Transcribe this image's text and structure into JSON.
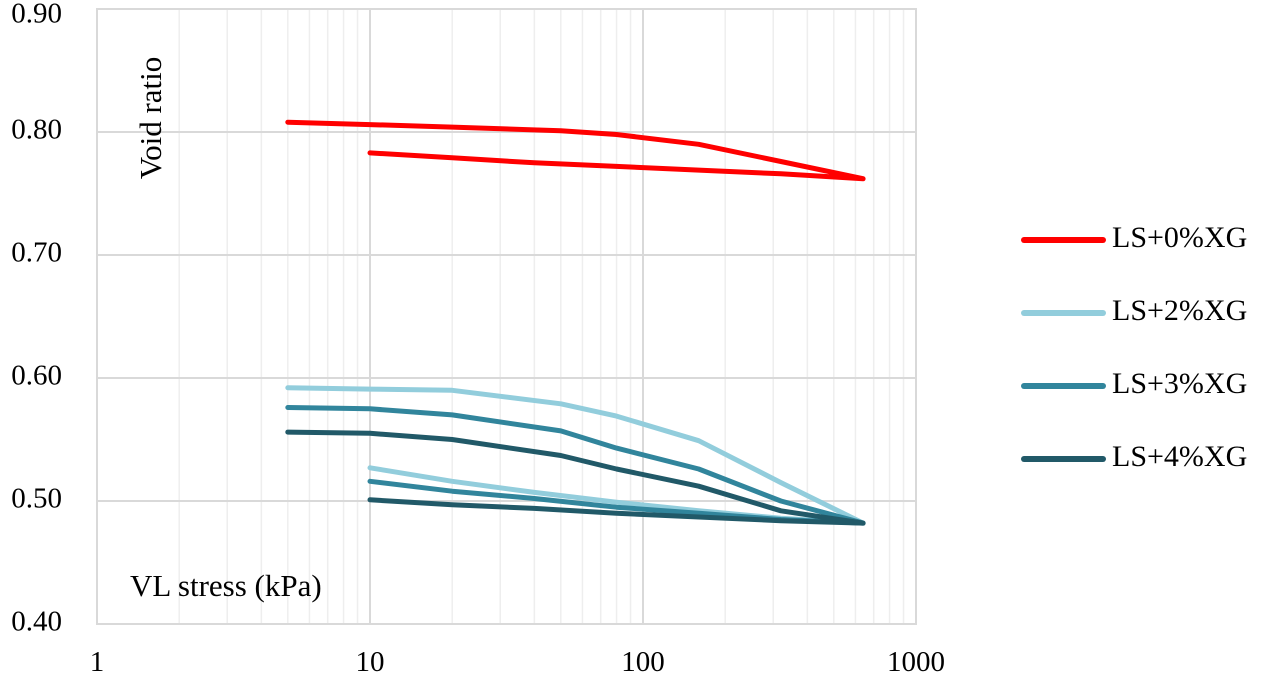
{
  "chart_data": {
    "type": "line",
    "title": "",
    "xlabel": "VL stress (kPa)",
    "ylabel": "Void ratio",
    "x_scale": "log",
    "xlim": [
      1,
      1000
    ],
    "ylim": [
      0.4,
      0.9
    ],
    "x_ticks": [
      "1",
      "10",
      "100",
      "1000"
    ],
    "y_ticks": [
      "0.40",
      "0.50",
      "0.60",
      "0.70",
      "0.80",
      "0.90"
    ],
    "grid": true,
    "legend_position": "right",
    "series": [
      {
        "name": "LS+0%XG",
        "color": "#ff0000",
        "x": [
          5,
          10,
          20,
          50,
          80,
          160,
          320,
          640,
          320,
          160,
          80,
          40,
          20,
          10
        ],
        "y": [
          0.808,
          0.806,
          0.804,
          0.801,
          0.798,
          0.79,
          0.776,
          0.762,
          0.766,
          0.769,
          0.772,
          0.775,
          0.779,
          0.783
        ]
      },
      {
        "name": "LS+2%XG",
        "color": "#92cddc",
        "x": [
          5,
          10,
          20,
          50,
          80,
          160,
          320,
          640,
          320,
          160,
          80,
          40,
          20,
          10
        ],
        "y": [
          0.592,
          0.591,
          0.59,
          0.579,
          0.569,
          0.549,
          0.515,
          0.482,
          0.486,
          0.492,
          0.499,
          0.507,
          0.516,
          0.527
        ]
      },
      {
        "name": "LS+3%XG",
        "color": "#31859c",
        "x": [
          5,
          10,
          20,
          50,
          80,
          160,
          320,
          640,
          320,
          160,
          80,
          40,
          20,
          10
        ],
        "y": [
          0.576,
          0.575,
          0.57,
          0.557,
          0.543,
          0.526,
          0.5,
          0.482,
          0.485,
          0.49,
          0.495,
          0.502,
          0.508,
          0.516
        ]
      },
      {
        "name": "LS+4%XG",
        "color": "#215968",
        "x": [
          5,
          10,
          20,
          50,
          80,
          160,
          320,
          640,
          320,
          160,
          80,
          40,
          20,
          10
        ],
        "y": [
          0.556,
          0.555,
          0.55,
          0.537,
          0.526,
          0.512,
          0.492,
          0.482,
          0.484,
          0.487,
          0.49,
          0.494,
          0.497,
          0.501
        ]
      }
    ]
  }
}
